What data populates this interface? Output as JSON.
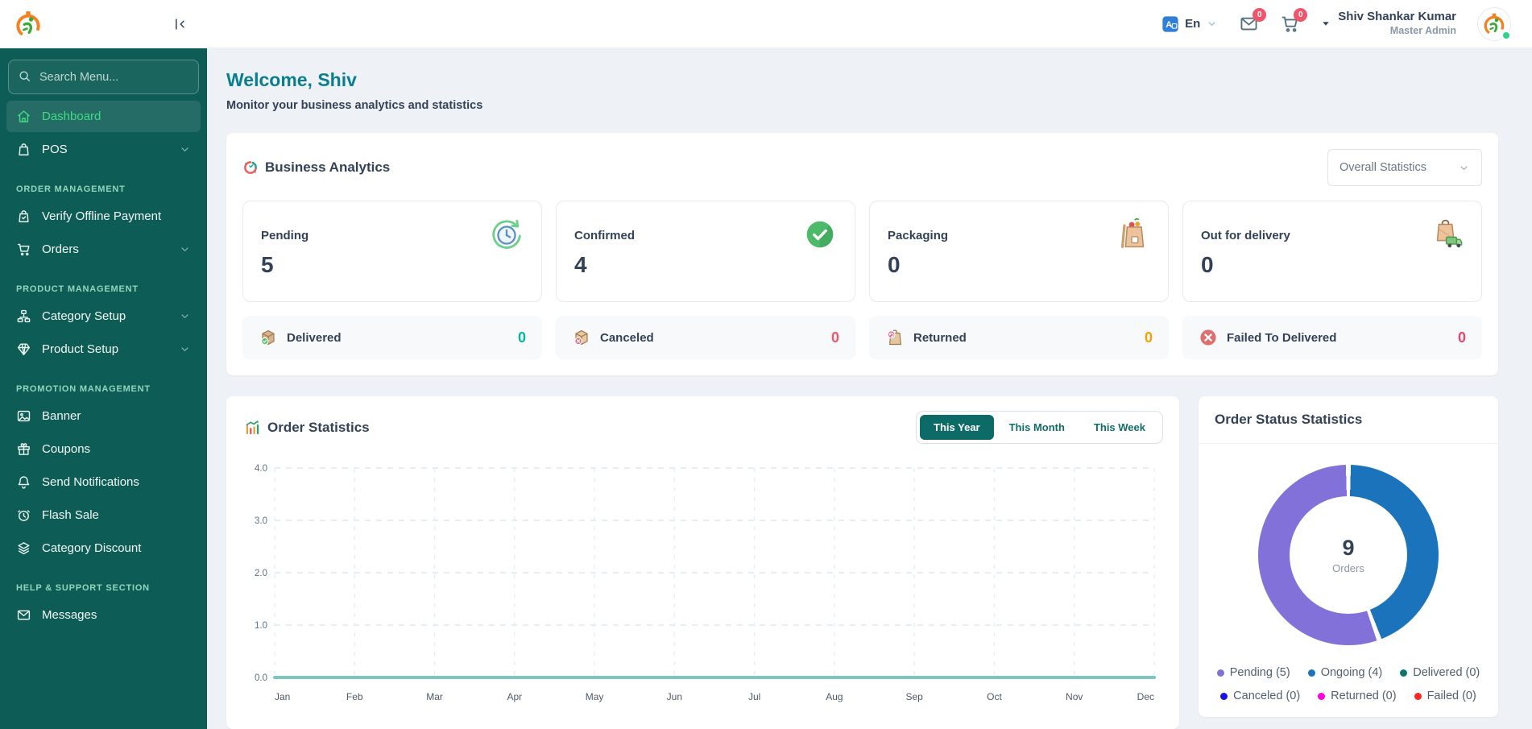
{
  "topbar": {
    "language_label": "En",
    "message_badge": "0",
    "cart_badge": "0",
    "user_name": "Shiv Shankar Kumar",
    "user_role": "Master Admin"
  },
  "sidebar": {
    "search_placeholder": "Search Menu...",
    "groups": [
      {
        "label": "",
        "items": [
          {
            "label": "Dashboard",
            "icon": "home",
            "active": true,
            "expandable": false
          },
          {
            "label": "POS",
            "icon": "bag",
            "active": false,
            "expandable": true
          }
        ]
      },
      {
        "label": "ORDER MANAGEMENT",
        "items": [
          {
            "label": "Verify Offline Payment",
            "icon": "bag-check",
            "active": false,
            "expandable": false
          },
          {
            "label": "Orders",
            "icon": "cart",
            "active": false,
            "expandable": true
          }
        ]
      },
      {
        "label": "PRODUCT MANAGEMENT",
        "items": [
          {
            "label": "Category Setup",
            "icon": "sitemap",
            "active": false,
            "expandable": true
          },
          {
            "label": "Product Setup",
            "icon": "diamond",
            "active": false,
            "expandable": true
          }
        ]
      },
      {
        "label": "PROMOTION MANAGEMENT",
        "items": [
          {
            "label": "Banner",
            "icon": "image",
            "active": false,
            "expandable": false
          },
          {
            "label": "Coupons",
            "icon": "gift",
            "active": false,
            "expandable": false
          },
          {
            "label": "Send Notifications",
            "icon": "bell",
            "active": false,
            "expandable": false
          },
          {
            "label": "Flash Sale",
            "icon": "alarm",
            "active": false,
            "expandable": false
          },
          {
            "label": "Category Discount",
            "icon": "layers",
            "active": false,
            "expandable": false
          }
        ]
      },
      {
        "label": "HELP & SUPPORT SECTION",
        "items": [
          {
            "label": "Messages",
            "icon": "envelope",
            "active": false,
            "expandable": false
          }
        ]
      }
    ]
  },
  "welcome": {
    "title": "Welcome, Shiv",
    "subtitle": "Monitor your business analytics and statistics"
  },
  "business_analytics": {
    "title": "Business Analytics",
    "filter_value": "Overall Statistics",
    "stat_cards": [
      {
        "label": "Pending",
        "value": "5",
        "icon": "clock-pending"
      },
      {
        "label": "Confirmed",
        "value": "4",
        "icon": "check-circle"
      },
      {
        "label": "Packaging",
        "value": "0",
        "icon": "package-bag"
      },
      {
        "label": "Out for delivery",
        "value": "0",
        "icon": "bag-truck"
      }
    ],
    "mini_cards": [
      {
        "label": "Delivered",
        "value": "0",
        "icon": "box-delivered",
        "value_color": "#00ba9d"
      },
      {
        "label": "Canceled",
        "value": "0",
        "icon": "box-canceled",
        "value_color": "#f1556c"
      },
      {
        "label": "Returned",
        "value": "0",
        "icon": "box-returned",
        "value_color": "#f5a200"
      },
      {
        "label": "Failed To Delivered",
        "value": "0",
        "icon": "x-circle",
        "value_color": "#f1426d"
      }
    ]
  },
  "order_statistics": {
    "title": "Order Statistics",
    "tabs": [
      {
        "label": "This Year",
        "active": true
      },
      {
        "label": "This Month",
        "active": false
      },
      {
        "label": "This Week",
        "active": false
      }
    ]
  },
  "chart_data": {
    "type": "line",
    "title": "Order Statistics",
    "x": [
      "Jan",
      "Feb",
      "Mar",
      "Apr",
      "May",
      "Jun",
      "Jul",
      "Aug",
      "Sep",
      "Oct",
      "Nov",
      "Dec"
    ],
    "series": [
      {
        "name": "Orders",
        "values": [
          0,
          0,
          0,
          0,
          0,
          0,
          0,
          0,
          0,
          0,
          0,
          0
        ],
        "color": "#7cc5c0"
      }
    ],
    "ylim": [
      0,
      4
    ],
    "yticks": [
      "0.0",
      "1.0",
      "2.0",
      "3.0",
      "4.0"
    ],
    "grid": true,
    "legend_position": "none"
  },
  "order_status": {
    "title": "Order Status Statistics",
    "center_value": "9",
    "center_label": "Orders",
    "total": 9,
    "segments": [
      {
        "label": "Pending (5)",
        "value": 5,
        "color": "#8171d8"
      },
      {
        "label": "Ongoing (4)",
        "value": 4,
        "color": "#1b74bb"
      },
      {
        "label": "Delivered (0)",
        "value": 0,
        "color": "#0f766e"
      },
      {
        "label": "Canceled (0)",
        "value": 0,
        "color": "#1a10f0"
      },
      {
        "label": "Returned (0)",
        "value": 0,
        "color": "#ff00e1"
      },
      {
        "label": "Failed (0)",
        "value": 0,
        "color": "#ff2323"
      }
    ]
  }
}
